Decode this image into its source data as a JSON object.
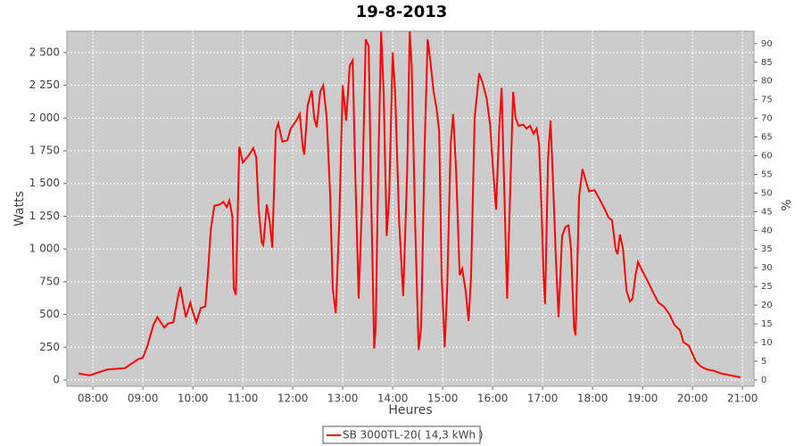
{
  "chart_data": {
    "type": "line",
    "title": "19-8-2013",
    "x_label": "Heures",
    "y_label": "Watts",
    "y2_label": "%",
    "xlim": [
      7.48,
      21.23
    ],
    "xticks": [
      {
        "value": 8,
        "label": "08:00"
      },
      {
        "value": 9,
        "label": "09:00"
      },
      {
        "value": 10,
        "label": "10:00"
      },
      {
        "value": 11,
        "label": "11:00"
      },
      {
        "value": 12,
        "label": "12:00"
      },
      {
        "value": 13,
        "label": "13:00"
      },
      {
        "value": 14,
        "label": "14:00"
      },
      {
        "value": 15,
        "label": "15:00"
      },
      {
        "value": 16,
        "label": "16:00"
      },
      {
        "value": 17,
        "label": "17:00"
      },
      {
        "value": 18,
        "label": "18:00"
      },
      {
        "value": 19,
        "label": "19:00"
      },
      {
        "value": 20,
        "label": "20:00"
      },
      {
        "value": 21,
        "label": "21:00"
      }
    ],
    "ylim": [
      -48,
      2663
    ],
    "yticks": [
      0,
      250,
      500,
      750,
      {
        "value": 1000,
        "label": "1 000"
      },
      {
        "value": 1250,
        "label": "1 250"
      },
      {
        "value": 1500,
        "label": "1 500"
      },
      {
        "value": 1750,
        "label": "1 750"
      },
      {
        "value": 2000,
        "label": "2 000"
      },
      {
        "value": 2250,
        "label": "2 250"
      },
      {
        "value": 2500,
        "label": "2 500"
      }
    ],
    "y2lim": [
      -1.7,
      93.3
    ],
    "y2ticks": [
      0,
      5,
      10,
      15,
      20,
      25,
      30,
      35,
      40,
      45,
      50,
      55,
      60,
      65,
      70,
      75,
      80,
      85,
      90
    ],
    "grid": true,
    "legend": "bottom",
    "x": [
      7.71,
      7.93,
      8.29,
      8.64,
      8.91,
      9.0,
      9.09,
      9.21,
      9.29,
      9.36,
      9.43,
      9.5,
      9.61,
      9.71,
      9.75,
      9.82,
      9.86,
      9.95,
      10.0,
      10.07,
      10.16,
      10.25,
      10.3,
      10.36,
      10.43,
      10.54,
      10.61,
      10.68,
      10.73,
      10.79,
      10.82,
      10.86,
      10.93,
      11.0,
      11.11,
      11.21,
      11.27,
      11.32,
      11.38,
      11.41,
      11.48,
      11.54,
      11.59,
      11.66,
      11.71,
      11.79,
      11.89,
      11.96,
      12.07,
      12.14,
      12.2,
      12.23,
      12.3,
      12.38,
      12.43,
      12.48,
      12.55,
      12.61,
      12.68,
      12.75,
      12.8,
      12.86,
      12.93,
      13.0,
      13.07,
      13.14,
      13.2,
      13.25,
      13.32,
      13.39,
      13.46,
      13.52,
      13.57,
      13.63,
      13.66,
      13.71,
      13.77,
      13.82,
      13.88,
      13.93,
      14.0,
      14.05,
      14.13,
      14.21,
      14.29,
      14.34,
      14.38,
      14.45,
      14.52,
      14.57,
      14.64,
      14.7,
      14.75,
      14.82,
      14.88,
      14.93,
      14.98,
      15.04,
      15.09,
      15.16,
      15.21,
      15.27,
      15.34,
      15.39,
      15.46,
      15.52,
      15.57,
      15.64,
      15.73,
      15.8,
      15.88,
      15.95,
      16.02,
      16.07,
      16.13,
      16.18,
      16.23,
      16.29,
      16.34,
      16.41,
      16.46,
      16.52,
      16.61,
      16.68,
      16.75,
      16.82,
      16.88,
      16.93,
      16.98,
      17.02,
      17.05,
      17.11,
      17.16,
      17.21,
      17.27,
      17.32,
      17.39,
      17.46,
      17.52,
      17.57,
      17.63,
      17.66,
      17.73,
      17.8,
      17.88,
      17.93,
      18.04,
      18.14,
      18.25,
      18.32,
      18.39,
      18.46,
      18.5,
      18.55,
      18.61,
      18.68,
      18.75,
      18.8,
      18.86,
      18.91,
      19.0,
      19.11,
      19.21,
      19.32,
      19.43,
      19.54,
      19.64,
      19.75,
      19.82,
      19.93,
      20.0,
      20.07,
      20.18,
      20.29,
      20.43,
      20.57,
      20.7,
      20.82,
      20.96
    ],
    "series": [
      {
        "name": "SB 3000TL-20( 14,3 kWh )",
        "color": "#ff0000",
        "values": [
          50,
          35,
          80,
          90,
          160,
          170,
          260,
          420,
          480,
          440,
          400,
          430,
          440,
          650,
          710,
          560,
          480,
          590,
          520,
          440,
          550,
          560,
          800,
          1150,
          1330,
          1340,
          1360,
          1320,
          1370,
          1250,
          700,
          650,
          1780,
          1660,
          1710,
          1770,
          1700,
          1300,
          1050,
          1030,
          1340,
          1200,
          1010,
          1900,
          1960,
          1820,
          1830,
          1920,
          1980,
          2030,
          1780,
          1720,
          2100,
          2210,
          2000,
          1930,
          2200,
          2250,
          2000,
          1400,
          700,
          510,
          1200,
          2250,
          1980,
          2400,
          2440,
          1600,
          620,
          1400,
          2600,
          2550,
          1400,
          240,
          400,
          1600,
          2660,
          2200,
          1100,
          1400,
          2500,
          2200,
          1200,
          640,
          1600,
          2660,
          2400,
          1200,
          230,
          400,
          1800,
          2600,
          2450,
          2200,
          2070,
          1900,
          800,
          250,
          700,
          1800,
          2030,
          1600,
          800,
          850,
          680,
          450,
          800,
          2000,
          2340,
          2270,
          2150,
          1950,
          1550,
          1300,
          1900,
          2230,
          1500,
          620,
          1300,
          2200,
          2000,
          1940,
          1950,
          1920,
          1940,
          1880,
          1920,
          1800,
          1300,
          800,
          580,
          1700,
          1980,
          1500,
          900,
          480,
          1100,
          1170,
          1180,
          1000,
          400,
          340,
          1400,
          1610,
          1500,
          1440,
          1450,
          1380,
          1300,
          1240,
          1220,
          1000,
          960,
          1110,
          1000,
          680,
          600,
          620,
          800,
          900,
          830,
          750,
          670,
          590,
          560,
          500,
          420,
          380,
          290,
          260,
          200,
          140,
          100,
          80,
          70,
          50,
          40,
          30,
          20
        ]
      }
    ]
  }
}
